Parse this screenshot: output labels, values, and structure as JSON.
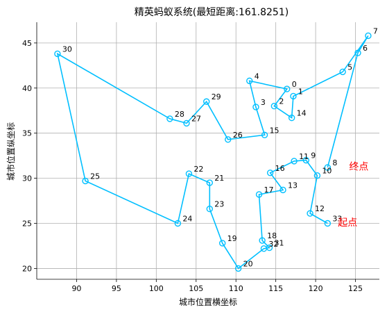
{
  "chart_data": {
    "type": "line",
    "title": "精英蚂蚁系统(最短距离:161.8251)",
    "xlabel": "城市位置横坐标",
    "ylabel": "城市位置纵坐标",
    "xlim": [
      85.0,
      128.0
    ],
    "ylim": [
      18.8,
      47.3
    ],
    "xticks": [
      90,
      95,
      100,
      105,
      110,
      115,
      120,
      125
    ],
    "yticks": [
      20,
      25,
      30,
      35,
      40,
      45
    ],
    "grid": true,
    "line_color": "#00bfff",
    "annotation_color": "#ff0000",
    "cities": [
      {
        "id": "0",
        "x": 116.4,
        "y": 39.9
      },
      {
        "id": "1",
        "x": 117.2,
        "y": 39.1
      },
      {
        "id": "2",
        "x": 114.8,
        "y": 38.0
      },
      {
        "id": "3",
        "x": 112.5,
        "y": 37.9
      },
      {
        "id": "4",
        "x": 111.7,
        "y": 40.8
      },
      {
        "id": "5",
        "x": 123.4,
        "y": 41.8
      },
      {
        "id": "6",
        "x": 125.3,
        "y": 43.9
      },
      {
        "id": "7",
        "x": 126.6,
        "y": 45.8
      },
      {
        "id": "8",
        "x": 121.5,
        "y": 31.2
      },
      {
        "id": "9",
        "x": 118.8,
        "y": 32.0
      },
      {
        "id": "10",
        "x": 120.2,
        "y": 30.3
      },
      {
        "id": "11",
        "x": 117.3,
        "y": 31.9
      },
      {
        "id": "12",
        "x": 119.3,
        "y": 26.1
      },
      {
        "id": "13",
        "x": 115.9,
        "y": 28.7
      },
      {
        "id": "14",
        "x": 117.0,
        "y": 36.7
      },
      {
        "id": "15",
        "x": 113.6,
        "y": 34.8
      },
      {
        "id": "16",
        "x": 114.3,
        "y": 30.6
      },
      {
        "id": "17",
        "x": 112.9,
        "y": 28.2
      },
      {
        "id": "18",
        "x": 113.3,
        "y": 23.1
      },
      {
        "id": "19",
        "x": 108.3,
        "y": 22.8
      },
      {
        "id": "20",
        "x": 110.3,
        "y": 20.0
      },
      {
        "id": "21",
        "x": 106.7,
        "y": 29.5
      },
      {
        "id": "22",
        "x": 104.1,
        "y": 30.5
      },
      {
        "id": "23",
        "x": 106.7,
        "y": 26.6
      },
      {
        "id": "24",
        "x": 102.7,
        "y": 25.0
      },
      {
        "id": "25",
        "x": 91.1,
        "y": 29.7
      },
      {
        "id": "26",
        "x": 109.0,
        "y": 34.3
      },
      {
        "id": "27",
        "x": 103.8,
        "y": 36.1
      },
      {
        "id": "28",
        "x": 101.7,
        "y": 36.6
      },
      {
        "id": "29",
        "x": 106.3,
        "y": 38.5
      },
      {
        "id": "30",
        "x": 87.6,
        "y": 43.8
      },
      {
        "id": "31",
        "x": 114.2,
        "y": 22.3
      },
      {
        "id": "32",
        "x": 113.5,
        "y": 22.2
      },
      {
        "id": "33",
        "x": 121.5,
        "y": 25.0
      }
    ],
    "route": [
      "33",
      "12",
      "10",
      "9",
      "11",
      "16",
      "13",
      "17",
      "18",
      "31",
      "32",
      "20",
      "19",
      "23",
      "21",
      "22",
      "24",
      "25",
      "30",
      "28",
      "27",
      "29",
      "26",
      "15",
      "3",
      "4",
      "0",
      "2",
      "14",
      "1",
      "5",
      "7",
      "6",
      "8"
    ],
    "annotations": [
      {
        "text": "起点",
        "x": 122.8,
        "y": 25.1
      },
      {
        "text": "终点",
        "x": 124.2,
        "y": 31.3
      }
    ]
  }
}
